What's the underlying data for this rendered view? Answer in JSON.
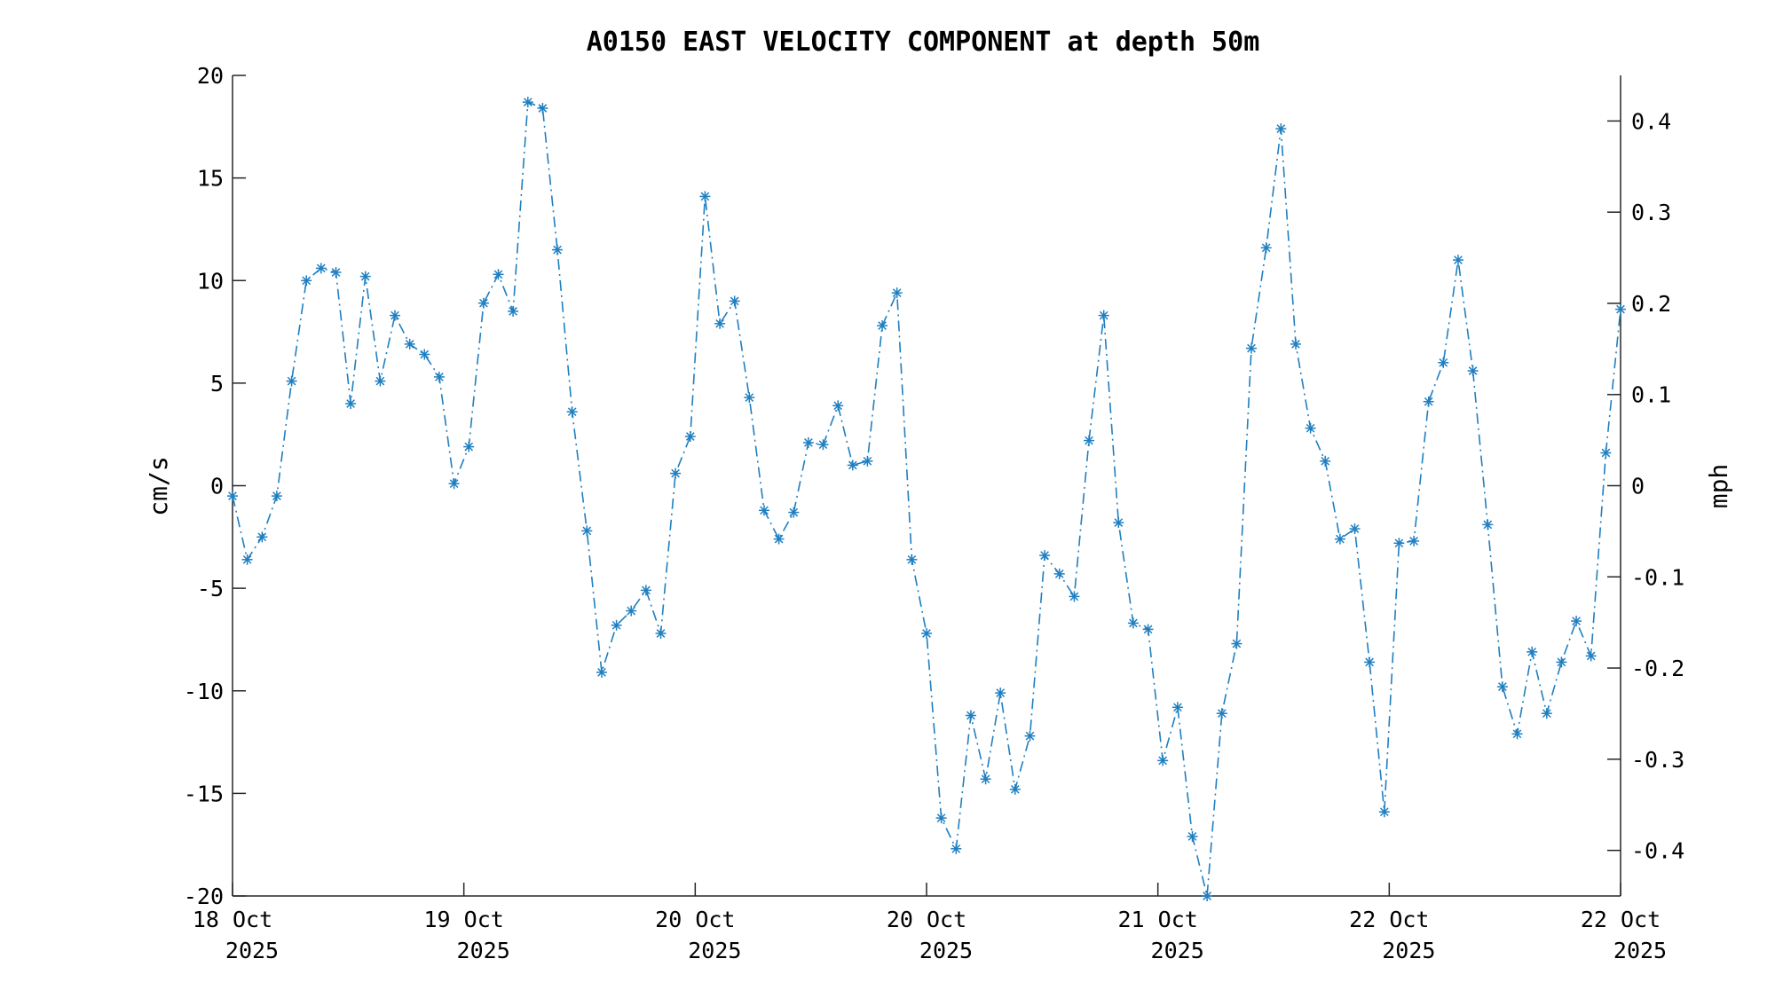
{
  "chart_data": {
    "type": "line",
    "title": "A0150 EAST VELOCITY COMPONENT at depth 50m",
    "ylabel": "cm/s",
    "ylabel_right": "mph",
    "ylim": [
      -20,
      20
    ],
    "ylim_right": [
      -0.45,
      0.45
    ],
    "xlim": [
      0,
      6
    ],
    "yticks": [
      "20",
      "15",
      "10",
      "5",
      "0",
      "-5",
      "-10",
      "-15",
      "-20"
    ],
    "yticks_right": [
      "0.4",
      "0.3",
      "0.2",
      "0.1",
      "0",
      "-0.1",
      "-0.2",
      "-0.3",
      "-0.4"
    ],
    "xticks": [
      {
        "day": "18 Oct",
        "year": "2025"
      },
      {
        "day": "19 Oct",
        "year": "2025"
      },
      {
        "day": "20 Oct",
        "year": "2025"
      },
      {
        "day": "20 Oct",
        "year": "2025"
      },
      {
        "day": "21 Oct",
        "year": "2025"
      },
      {
        "day": "22 Oct",
        "year": "2025"
      },
      {
        "day": "22 Oct",
        "year": "2025"
      }
    ],
    "grid": false,
    "series": [
      {
        "color": "#1f7fc0",
        "marker": "asterisk",
        "linestyle": "dash-dot",
        "values": [
          -0.5,
          -3.6,
          -2.5,
          -0.5,
          5.1,
          10.0,
          10.6,
          10.4,
          4.0,
          10.2,
          5.1,
          8.3,
          6.9,
          6.4,
          5.3,
          0.1,
          1.9,
          8.9,
          10.3,
          8.5,
          18.7,
          18.4,
          11.5,
          3.6,
          -2.2,
          -9.1,
          -6.8,
          -6.1,
          -5.1,
          -7.2,
          0.6,
          2.4,
          14.1,
          7.9,
          9.0,
          4.3,
          -1.2,
          -2.6,
          -1.3,
          2.1,
          2.0,
          3.9,
          1.0,
          1.2,
          7.8,
          9.4,
          -3.6,
          -7.2,
          -16.2,
          -17.7,
          -11.2,
          -14.3,
          -10.1,
          -14.8,
          -12.2,
          -3.4,
          -4.3,
          -5.4,
          2.2,
          8.3,
          -1.8,
          -6.7,
          -7.0,
          -13.4,
          -10.8,
          -17.1,
          -20.0,
          -11.1,
          -7.7,
          6.7,
          11.6,
          17.4,
          6.9,
          2.8,
          1.2,
          -2.6,
          -2.1,
          -8.6,
          -15.9,
          -2.8,
          -2.7,
          4.1,
          6.0,
          11.0,
          5.6,
          -1.9,
          -9.8,
          -12.1,
          -8.1,
          -11.1,
          -8.6,
          -6.6,
          -8.3,
          1.6,
          8.6
        ]
      }
    ]
  }
}
